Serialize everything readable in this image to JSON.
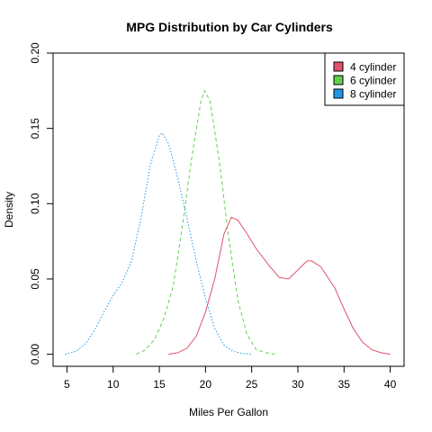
{
  "chart_data": {
    "type": "line",
    "title": "MPG Distribution by Car Cylinders",
    "xlabel": "Miles Per Gallon",
    "ylabel": "Density",
    "xlim": [
      3.5,
      41.5
    ],
    "ylim": [
      -0.008,
      0.2
    ],
    "x_ticks": [
      5,
      10,
      15,
      20,
      25,
      30,
      35,
      40
    ],
    "y_ticks": [
      0.0,
      0.05,
      0.1,
      0.15,
      0.2
    ],
    "y_tick_labels": [
      "0.00",
      "0.05",
      "0.10",
      "0.15",
      "0.20"
    ],
    "grid": false,
    "legend_position": "top-right",
    "series": [
      {
        "name": "4 cylinder",
        "color": "#DF536B",
        "dash": "solid",
        "points": [
          [
            16,
            0
          ],
          [
            17,
            0.001
          ],
          [
            18,
            0.004
          ],
          [
            19,
            0.012
          ],
          [
            20,
            0.028
          ],
          [
            21,
            0.05
          ],
          [
            22,
            0.08
          ],
          [
            22.8,
            0.091
          ],
          [
            23.5,
            0.089
          ],
          [
            24.5,
            0.08
          ],
          [
            25.5,
            0.07
          ],
          [
            27,
            0.058
          ],
          [
            28,
            0.051
          ],
          [
            29,
            0.05
          ],
          [
            30,
            0.056
          ],
          [
            31,
            0.062
          ],
          [
            31.5,
            0.062
          ],
          [
            32.5,
            0.058
          ],
          [
            34,
            0.044
          ],
          [
            35,
            0.03
          ],
          [
            36,
            0.017
          ],
          [
            37,
            0.008
          ],
          [
            38,
            0.003
          ],
          [
            39,
            0.001
          ],
          [
            40,
            0
          ]
        ]
      },
      {
        "name": "6 cylinder",
        "color": "#61D04F",
        "dash": "dashed",
        "points": [
          [
            12.5,
            0
          ],
          [
            13.5,
            0.003
          ],
          [
            14.5,
            0.01
          ],
          [
            15.5,
            0.024
          ],
          [
            16.5,
            0.045
          ],
          [
            17.5,
            0.085
          ],
          [
            18.5,
            0.13
          ],
          [
            19.5,
            0.168
          ],
          [
            19.9,
            0.175
          ],
          [
            20.5,
            0.168
          ],
          [
            21.5,
            0.128
          ],
          [
            22.5,
            0.078
          ],
          [
            23.5,
            0.036
          ],
          [
            24.5,
            0.013
          ],
          [
            25.5,
            0.003
          ],
          [
            26.5,
            0.001
          ],
          [
            27.5,
            0
          ]
        ]
      },
      {
        "name": "8 cylinder",
        "color": "#2297E6",
        "dash": "dotted",
        "points": [
          [
            4.8,
            0
          ],
          [
            6,
            0.002
          ],
          [
            7,
            0.007
          ],
          [
            8,
            0.016
          ],
          [
            9,
            0.028
          ],
          [
            10,
            0.039
          ],
          [
            11,
            0.048
          ],
          [
            12,
            0.062
          ],
          [
            13,
            0.09
          ],
          [
            14,
            0.125
          ],
          [
            15,
            0.145
          ],
          [
            15.3,
            0.147
          ],
          [
            16,
            0.14
          ],
          [
            17,
            0.117
          ],
          [
            18,
            0.09
          ],
          [
            19,
            0.062
          ],
          [
            20,
            0.037
          ],
          [
            21,
            0.017
          ],
          [
            22,
            0.006
          ],
          [
            23,
            0.002
          ],
          [
            24,
            0.0005
          ],
          [
            25,
            0
          ]
        ]
      }
    ]
  }
}
